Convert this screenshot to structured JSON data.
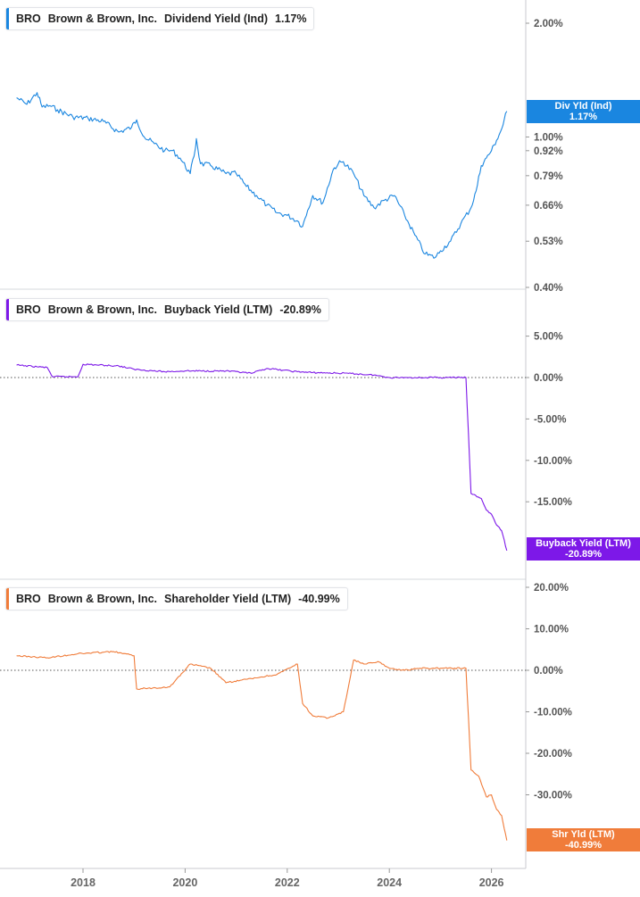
{
  "colors": {
    "blue": "#1a86e0",
    "purple": "#7d18e8",
    "orange": "#f07c3a"
  },
  "x_ticks": [
    "2018",
    "2020",
    "2022",
    "2024",
    "2026"
  ],
  "panels": [
    {
      "legend": {
        "ticker": "BRO",
        "company": "Brown & Brown, Inc.",
        "metric": "Dividend Yield (Ind)",
        "value": "1.17%"
      },
      "flag": {
        "label": "Div Yld (Ind)",
        "value": "1.17%"
      },
      "y_ticks": [
        "2.00%",
        "1.00%",
        "0.92%",
        "0.79%",
        "0.66%",
        "0.53%",
        "0.40%"
      ]
    },
    {
      "legend": {
        "ticker": "BRO",
        "company": "Brown & Brown, Inc.",
        "metric": "Buyback Yield (LTM)",
        "value": "-20.89%"
      },
      "flag": {
        "label": "Buyback Yield (LTM)",
        "value": "-20.89%"
      },
      "y_ticks": [
        "5.00%",
        "0.00%",
        "-5.00%",
        "-10.00%",
        "-15.00%"
      ]
    },
    {
      "legend": {
        "ticker": "BRO",
        "company": "Brown & Brown, Inc.",
        "metric": "Shareholder Yield (LTM)",
        "value": "-40.99%"
      },
      "flag": {
        "label": "Shr Yld (LTM)",
        "value": "-40.99%"
      },
      "y_ticks": [
        "20.00%",
        "10.00%",
        "0.00%",
        "-10.00%",
        "-20.00%",
        "-30.00%"
      ]
    }
  ],
  "chart_data": [
    {
      "type": "line",
      "title": "BRO Brown & Brown, Inc. Dividend Yield (Ind) 1.17%",
      "ylim": [
        0.4,
        2.2
      ],
      "log_scale": true,
      "series": [
        {
          "name": "Dividend Yield (Ind)",
          "x": [
            2016.7,
            2016.9,
            2017.1,
            2017.2,
            2017.35,
            2017.5,
            2017.8,
            2018.1,
            2018.4,
            2018.7,
            2018.95,
            2019.05,
            2019.2,
            2019.4,
            2019.6,
            2019.75,
            2019.9,
            2020.1,
            2020.2,
            2020.22,
            2020.3,
            2020.5,
            2020.8,
            2021.0,
            2021.2,
            2021.4,
            2021.6,
            2021.8,
            2022.0,
            2022.2,
            2022.3,
            2022.4,
            2022.5,
            2022.7,
            2022.9,
            2023.0,
            2023.1,
            2023.3,
            2023.5,
            2023.7,
            2023.9,
            2024.1,
            2024.3,
            2024.5,
            2024.7,
            2024.9,
            2025.0,
            2025.2,
            2025.4,
            2025.6,
            2025.7,
            2025.8,
            2025.9,
            2026.0,
            2026.1,
            2026.2,
            2026.3
          ],
          "y": [
            1.27,
            1.22,
            1.31,
            1.2,
            1.21,
            1.18,
            1.13,
            1.12,
            1.1,
            1.03,
            1.06,
            1.11,
            1.0,
            0.96,
            0.92,
            0.92,
            0.88,
            0.8,
            0.93,
            0.99,
            0.85,
            0.84,
            0.8,
            0.8,
            0.74,
            0.7,
            0.66,
            0.63,
            0.62,
            0.6,
            0.58,
            0.64,
            0.7,
            0.67,
            0.82,
            0.85,
            0.86,
            0.8,
            0.7,
            0.65,
            0.68,
            0.7,
            0.62,
            0.55,
            0.49,
            0.48,
            0.5,
            0.53,
            0.59,
            0.65,
            0.72,
            0.84,
            0.88,
            0.92,
            0.98,
            1.05,
            1.17
          ]
        }
      ]
    },
    {
      "type": "line",
      "title": "BRO Brown & Brown, Inc. Buyback Yield (LTM) -20.89%",
      "ylim": [
        -22,
        8
      ],
      "series": [
        {
          "name": "Buyback Yield (LTM)",
          "x": [
            2016.7,
            2017.3,
            2017.4,
            2017.9,
            2018.0,
            2018.7,
            2019.0,
            2019.6,
            2020.0,
            2020.8,
            2021.3,
            2021.6,
            2022.2,
            2022.5,
            2023.2,
            2023.7,
            2024.0,
            2024.5,
            2025.0,
            2025.5,
            2025.6,
            2025.8,
            2025.9,
            2026.0,
            2026.1,
            2026.2,
            2026.3
          ],
          "y": [
            1.5,
            1.2,
            0.1,
            0.1,
            1.6,
            1.4,
            1.0,
            0.7,
            0.8,
            0.8,
            0.5,
            1.1,
            0.7,
            0.6,
            0.5,
            0.3,
            0.0,
            0.0,
            0.0,
            0.0,
            -14.0,
            -14.6,
            -16.0,
            -16.5,
            -17.8,
            -18.5,
            -20.89
          ]
        }
      ]
    },
    {
      "type": "line",
      "title": "BRO Brown & Brown, Inc. Shareholder Yield (LTM) -40.99%",
      "ylim": [
        -43,
        22
      ],
      "series": [
        {
          "name": "Shareholder Yield (LTM)",
          "x": [
            2016.7,
            2017.3,
            2017.9,
            2018.6,
            2019.0,
            2019.05,
            2019.7,
            2020.1,
            2020.5,
            2020.8,
            2021.3,
            2021.8,
            2022.2,
            2022.3,
            2022.5,
            2022.8,
            2023.1,
            2023.3,
            2023.5,
            2023.8,
            2024.0,
            2024.3,
            2024.6,
            2025.0,
            2025.5,
            2025.6,
            2025.75,
            2025.9,
            2026.0,
            2026.1,
            2026.2,
            2026.3
          ],
          "y": [
            3.5,
            3.0,
            4.0,
            4.5,
            3.5,
            -4.5,
            -4.0,
            1.5,
            0.5,
            -3.0,
            -2.0,
            -1.0,
            1.5,
            -8.0,
            -11.0,
            -11.5,
            -10.0,
            2.5,
            1.5,
            2.0,
            0.5,
            0.0,
            0.5,
            0.5,
            0.5,
            -24.0,
            -25.5,
            -30.5,
            -30.0,
            -33.5,
            -35.0,
            -40.99
          ]
        }
      ]
    }
  ]
}
